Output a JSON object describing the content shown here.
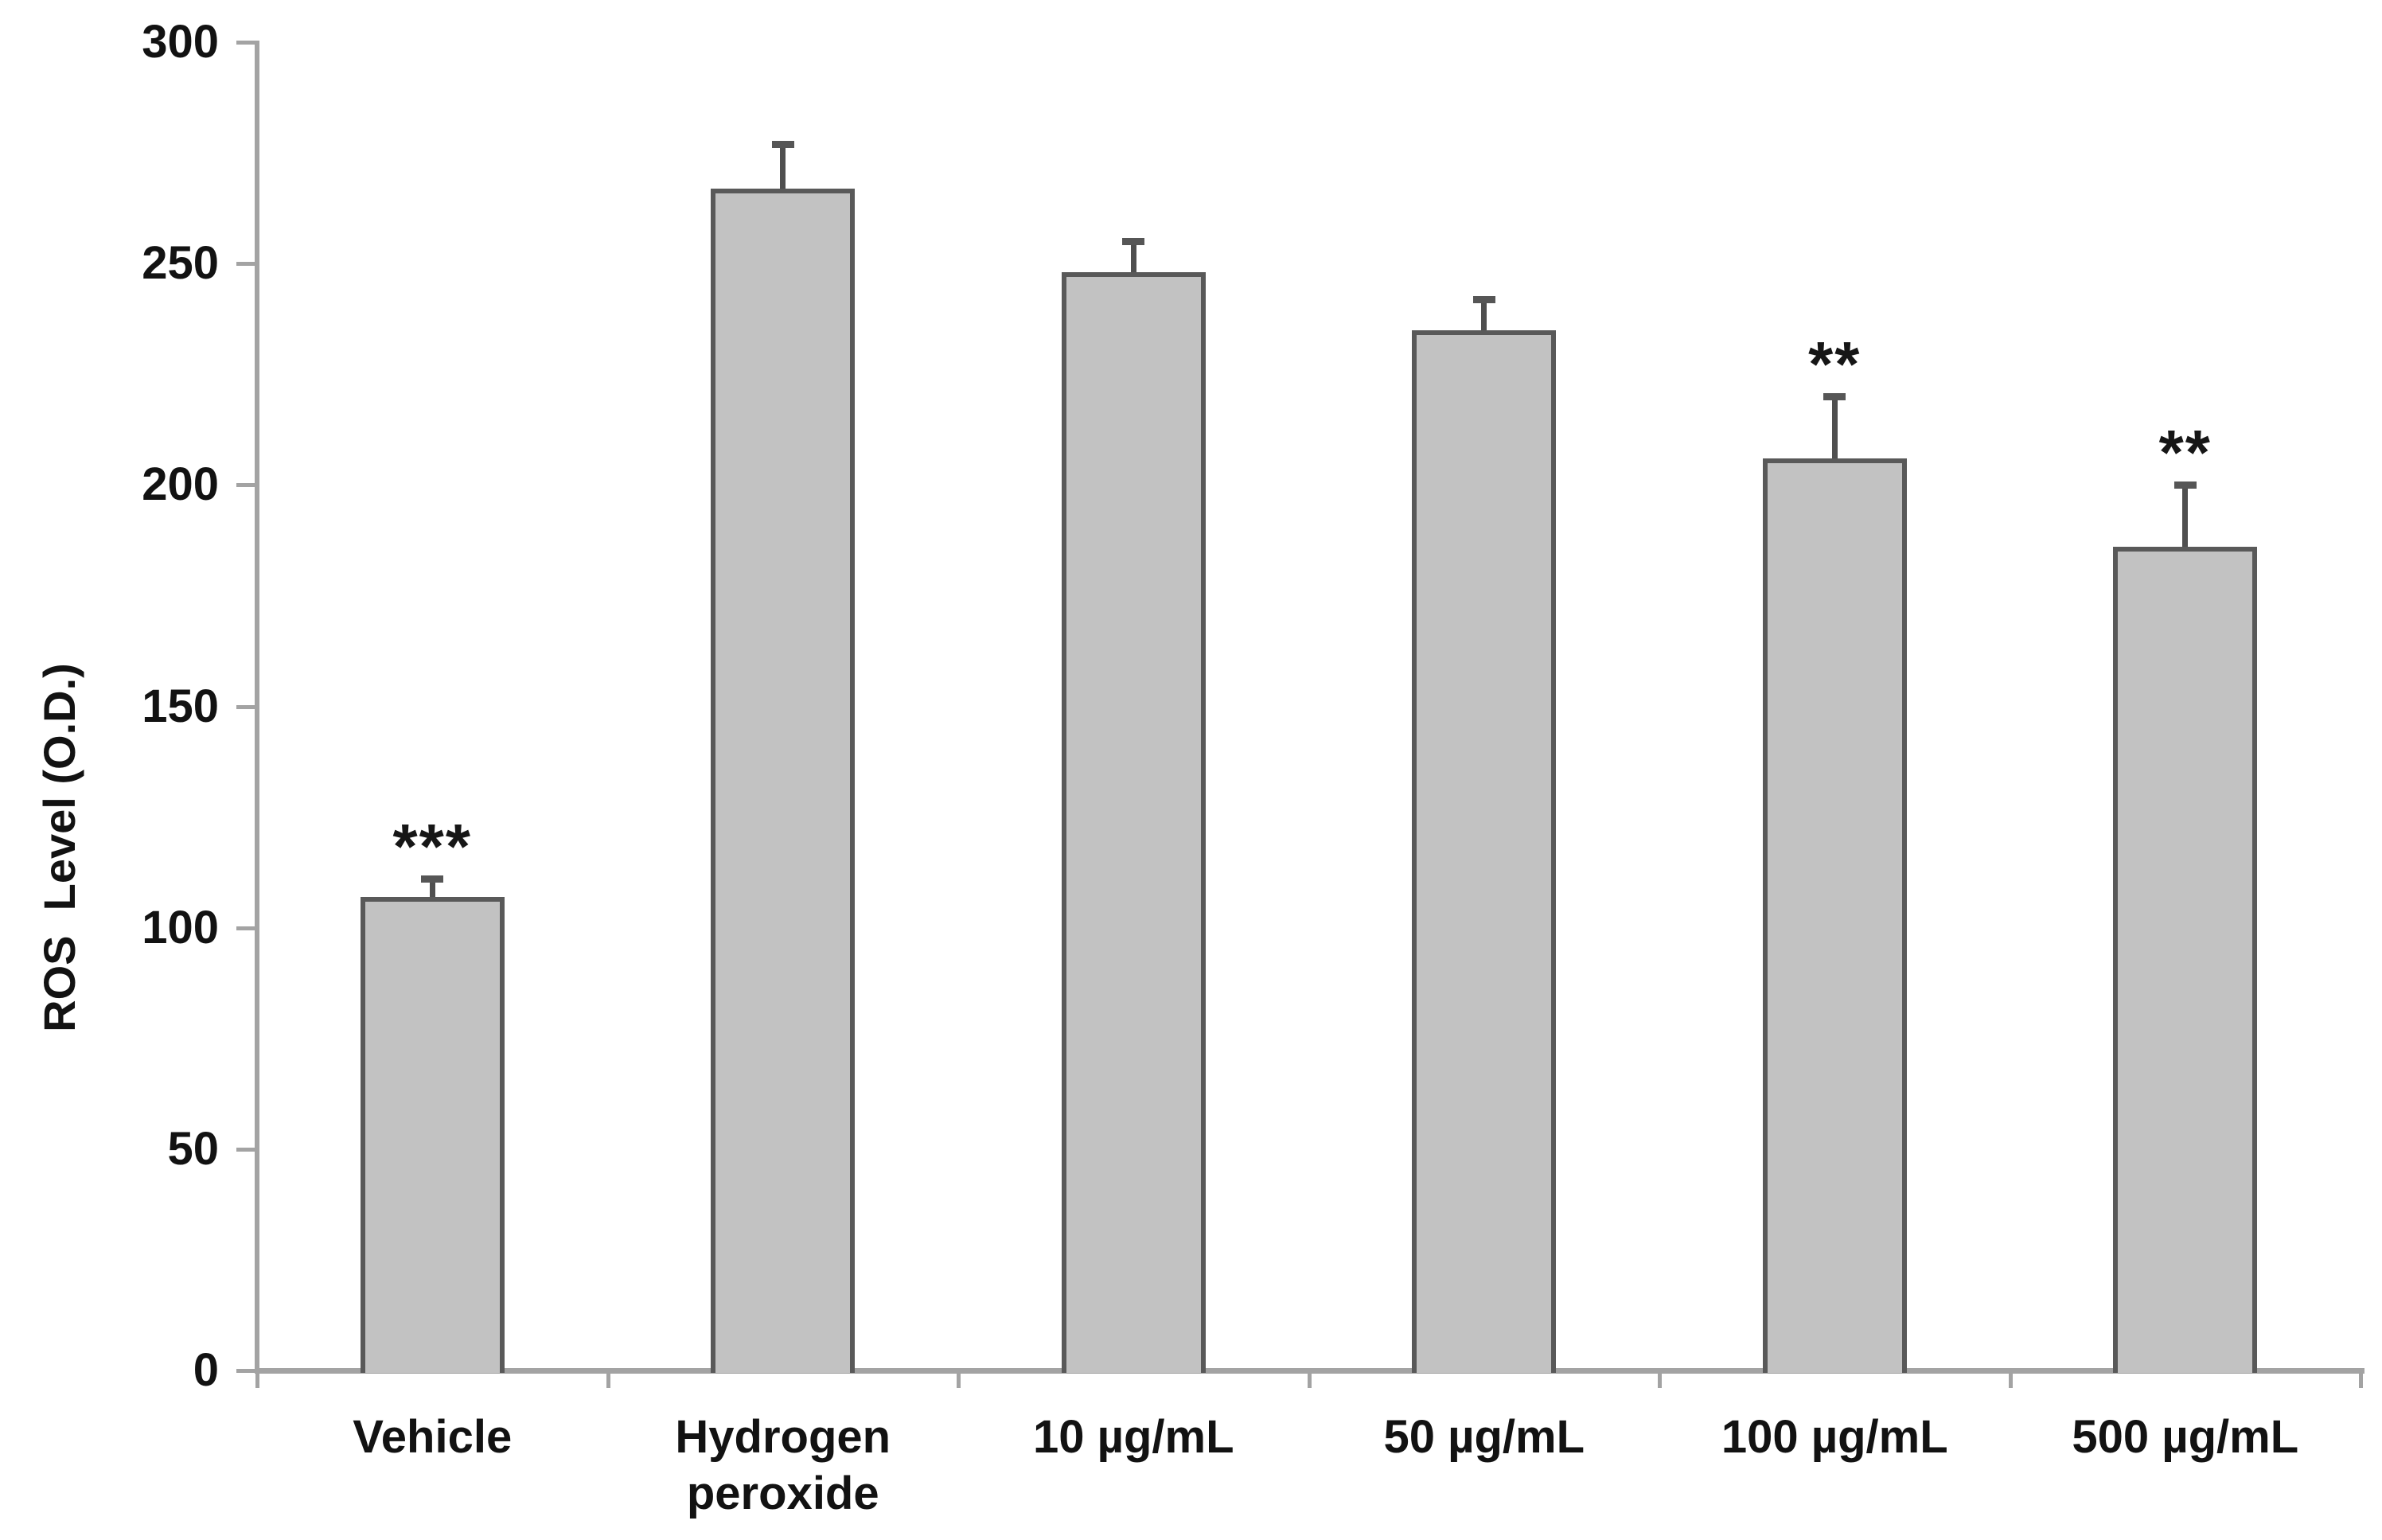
{
  "chart_data": {
    "type": "bar",
    "title": "",
    "xlabel": "",
    "ylabel": "ROS  Level (O.D.)",
    "ylim": [
      0,
      300
    ],
    "yticks": [
      0,
      50,
      100,
      150,
      200,
      250,
      300
    ],
    "grid": false,
    "legend": null,
    "categories": [
      "Vehicle",
      "Hydrogen peroxide",
      "10 µg/mL",
      "50 µg/mL",
      "100 µg/mL",
      "500 µg/mL"
    ],
    "values": [
      107,
      267,
      248,
      235,
      206,
      186
    ],
    "errors_plus": [
      4,
      10,
      7,
      7,
      14,
      14
    ],
    "significance": [
      "***",
      "",
      "",
      "",
      "**",
      "**"
    ],
    "colors": {
      "bar_fill": "#c2c2c2",
      "bar_border": "#595959",
      "axis": "#a3a3a3",
      "error_bar": "#4f4f4f",
      "text": "#121212"
    }
  }
}
